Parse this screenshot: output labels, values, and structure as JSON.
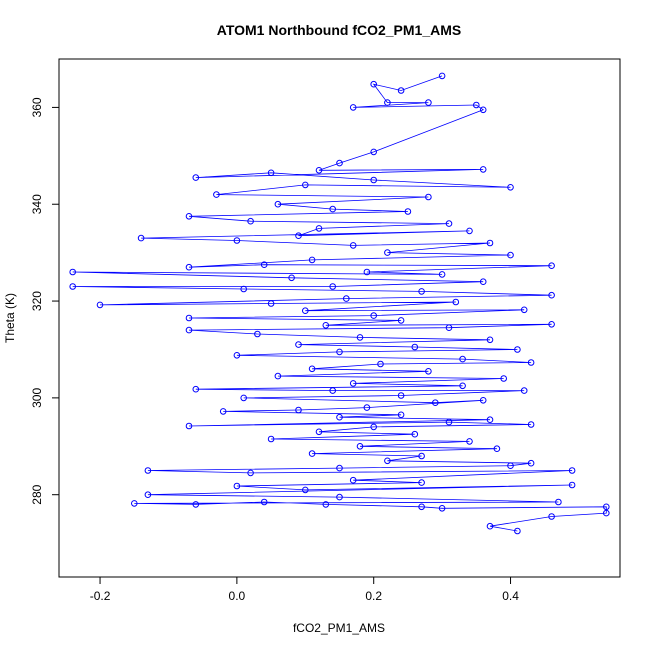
{
  "chart_data": {
    "type": "scatter",
    "title": "ATOM1 Northbound fCO2_PM1_AMS",
    "xlabel": "fCO2_PM1_AMS",
    "ylabel": "Theta (K)",
    "xlim": [
      -0.26,
      0.56
    ],
    "ylim": [
      263,
      370
    ],
    "xticks": [
      -0.2,
      0.0,
      0.2,
      0.4
    ],
    "xtick_labels": [
      "-0.2",
      "0.0",
      "0.2",
      "0.4"
    ],
    "yticks": [
      280,
      300,
      320,
      340,
      360
    ],
    "ytick_labels": [
      "280",
      "300",
      "320",
      "340",
      "360"
    ],
    "grid": false,
    "markers": "open circles connected by lines",
    "color": "#0000ff",
    "series": [
      {
        "values_note": "",
        "points": [
          [
            0.3,
            366.5
          ],
          [
            0.24,
            363.5
          ],
          [
            0.2,
            364.8
          ],
          [
            0.22,
            361.0
          ],
          [
            0.28,
            361.0
          ],
          [
            0.17,
            360.0
          ],
          [
            0.35,
            360.5
          ],
          [
            0.36,
            359.5
          ],
          [
            0.2,
            350.8
          ],
          [
            0.15,
            348.5
          ],
          [
            0.12,
            347.0
          ],
          [
            0.36,
            347.2
          ],
          [
            -0.06,
            345.5
          ],
          [
            0.05,
            346.5
          ],
          [
            0.2,
            345.0
          ],
          [
            0.4,
            343.5
          ],
          [
            0.1,
            344.0
          ],
          [
            -0.03,
            342.0
          ],
          [
            0.28,
            341.5
          ],
          [
            0.06,
            340.0
          ],
          [
            0.14,
            339.0
          ],
          [
            0.25,
            338.5
          ],
          [
            -0.07,
            337.5
          ],
          [
            0.02,
            336.5
          ],
          [
            0.31,
            336.0
          ],
          [
            0.12,
            335.0
          ],
          [
            0.09,
            333.5
          ],
          [
            0.34,
            334.5
          ],
          [
            -0.14,
            333.0
          ],
          [
            0.0,
            332.5
          ],
          [
            0.17,
            331.5
          ],
          [
            0.37,
            332.0
          ],
          [
            0.22,
            330.0
          ],
          [
            0.4,
            329.5
          ],
          [
            0.11,
            328.5
          ],
          [
            -0.07,
            327.0
          ],
          [
            0.04,
            327.5
          ],
          [
            0.46,
            327.3
          ],
          [
            0.19,
            326.0
          ],
          [
            0.3,
            325.5
          ],
          [
            -0.24,
            326.0
          ],
          [
            0.08,
            324.8
          ],
          [
            0.36,
            324.0
          ],
          [
            0.14,
            323.0
          ],
          [
            -0.24,
            323.0
          ],
          [
            0.01,
            322.5
          ],
          [
            0.27,
            322.0
          ],
          [
            0.46,
            321.2
          ],
          [
            0.16,
            320.5
          ],
          [
            -0.2,
            319.2
          ],
          [
            0.05,
            319.5
          ],
          [
            0.32,
            319.8
          ],
          [
            0.1,
            318.0
          ],
          [
            0.42,
            318.2
          ],
          [
            0.2,
            317.0
          ],
          [
            -0.07,
            316.5
          ],
          [
            0.24,
            316.0
          ],
          [
            0.13,
            315.0
          ],
          [
            0.46,
            315.2
          ],
          [
            0.31,
            314.5
          ],
          [
            -0.07,
            314.0
          ],
          [
            0.03,
            313.2
          ],
          [
            0.18,
            312.5
          ],
          [
            0.37,
            312.0
          ],
          [
            0.09,
            311.0
          ],
          [
            0.26,
            310.5
          ],
          [
            0.41,
            310.0
          ],
          [
            0.15,
            309.5
          ],
          [
            0.0,
            308.8
          ],
          [
            0.33,
            308.0
          ],
          [
            0.43,
            307.3
          ],
          [
            0.21,
            307.0
          ],
          [
            0.11,
            306.0
          ],
          [
            0.28,
            305.5
          ],
          [
            0.06,
            304.5
          ],
          [
            0.39,
            304.0
          ],
          [
            0.17,
            303.0
          ],
          [
            0.33,
            302.5
          ],
          [
            -0.06,
            301.8
          ],
          [
            0.14,
            301.5
          ],
          [
            0.42,
            301.5
          ],
          [
            0.24,
            300.5
          ],
          [
            0.01,
            300.0
          ],
          [
            0.29,
            299.0
          ],
          [
            0.36,
            299.5
          ],
          [
            0.19,
            298.0
          ],
          [
            0.09,
            297.5
          ],
          [
            -0.02,
            297.2
          ],
          [
            0.24,
            296.5
          ],
          [
            0.15,
            296.0
          ],
          [
            0.37,
            295.5
          ],
          [
            -0.07,
            294.2
          ],
          [
            0.31,
            295.0
          ],
          [
            0.43,
            294.5
          ],
          [
            0.2,
            294.0
          ],
          [
            0.12,
            293.0
          ],
          [
            0.26,
            292.5
          ],
          [
            0.05,
            291.5
          ],
          [
            0.34,
            291.0
          ],
          [
            0.18,
            290.0
          ],
          [
            0.38,
            289.5
          ],
          [
            0.11,
            288.5
          ],
          [
            0.27,
            288.0
          ],
          [
            0.22,
            287.0
          ],
          [
            0.43,
            286.5
          ],
          [
            0.4,
            286.0
          ],
          [
            0.15,
            285.5
          ],
          [
            -0.13,
            285.0
          ],
          [
            0.02,
            284.5
          ],
          [
            0.49,
            285.0
          ],
          [
            0.17,
            283.0
          ],
          [
            0.27,
            282.5
          ],
          [
            0.0,
            281.8
          ],
          [
            0.1,
            281.0
          ],
          [
            0.49,
            282.0
          ],
          [
            -0.13,
            280.0
          ],
          [
            0.15,
            279.5
          ],
          [
            0.47,
            278.5
          ],
          [
            -0.15,
            278.2
          ],
          [
            -0.06,
            278.0
          ],
          [
            0.04,
            278.5
          ],
          [
            0.13,
            278.0
          ],
          [
            0.27,
            277.5
          ],
          [
            0.3,
            277.2
          ],
          [
            0.54,
            277.5
          ],
          [
            0.54,
            276.2
          ],
          [
            0.46,
            275.5
          ],
          [
            0.37,
            273.5
          ],
          [
            0.41,
            272.5
          ]
        ]
      }
    ]
  }
}
